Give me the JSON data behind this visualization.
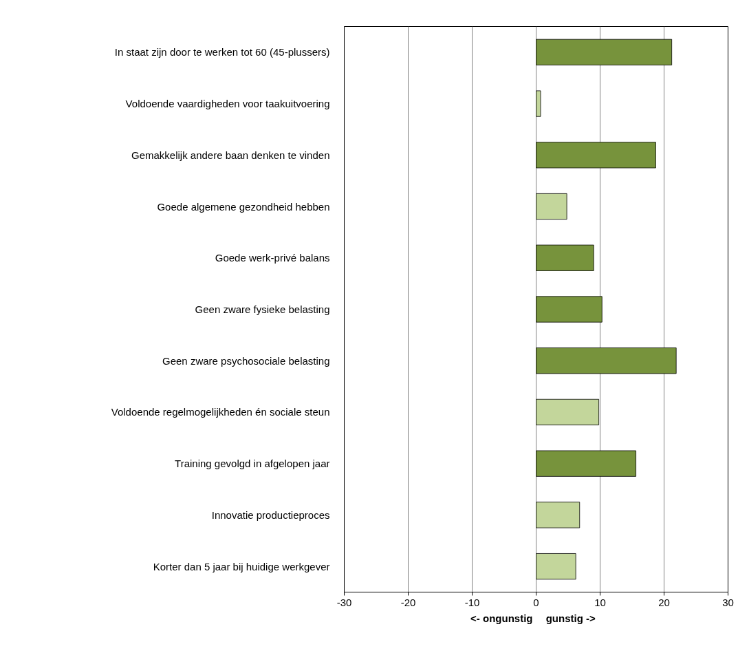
{
  "chart_data": {
    "type": "bar",
    "orientation": "horizontal",
    "categories": [
      "In staat zijn door te werken tot 60 (45-plussers)",
      "Voldoende vaardigheden voor taakuitvoering",
      "Gemakkelijk andere baan denken te vinden",
      "Goede algemene gezondheid hebben",
      "Goede werk-privé balans",
      "Geen zware fysieke belasting",
      "Geen zware psychosociale belasting",
      "Voldoende regelmogelijkheden én sociale steun",
      "Training gevolgd in afgelopen jaar",
      "Innovatie productieproces",
      "Korter dan 5 jaar bij huidige werkgever"
    ],
    "values": [
      21.2,
      0.7,
      18.7,
      4.8,
      9.0,
      10.3,
      21.9,
      9.8,
      15.6,
      6.8,
      6.2
    ],
    "colors": [
      "#77933c",
      "#c3d69b",
      "#77933c",
      "#c3d69b",
      "#77933c",
      "#77933c",
      "#77933c",
      "#c3d69b",
      "#77933c",
      "#c3d69b",
      "#c3d69b"
    ],
    "xlim": [
      -30,
      30
    ],
    "xticks": [
      -30,
      -20,
      -10,
      0,
      10,
      20,
      30
    ],
    "grid": "x",
    "annotations": [
      "<- ongunstig",
      "gunstig ->"
    ]
  }
}
